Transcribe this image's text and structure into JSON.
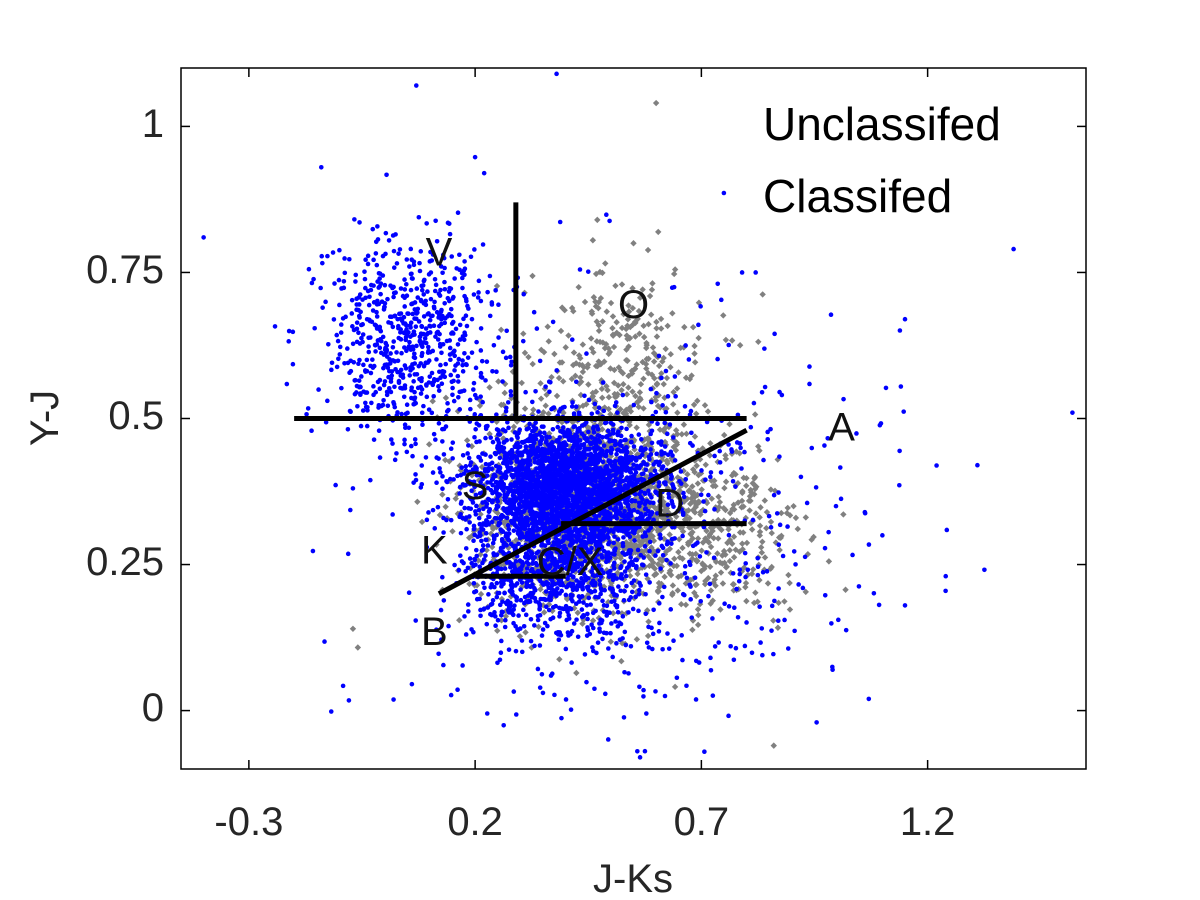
{
  "chart_data": {
    "type": "scatter",
    "title": "",
    "xlabel": "J-Ks",
    "ylabel": "Y-J",
    "xlim": [
      -0.45,
      1.55
    ],
    "ylim": [
      -0.1,
      1.1
    ],
    "x_ticks": [
      -0.3,
      0.2,
      0.7,
      1.2
    ],
    "x_tick_labels": [
      "-0.3",
      "0.2",
      "0.7",
      "1.2"
    ],
    "y_ticks": [
      0,
      0.25,
      0.5,
      0.75,
      1
    ],
    "y_tick_labels": [
      "0",
      "0.25",
      "0.5",
      "0.75",
      "1"
    ],
    "grid": false,
    "legend_placement": "top-right",
    "colors": {
      "unclassified": "#808080",
      "classified": "#0000ff",
      "boundary": "#000000"
    },
    "series": [
      {
        "name": "Unclassifed",
        "marker": "diamond",
        "color": "#808080",
        "clusters": [
          {
            "center": [
              0.45,
              0.36
            ],
            "spread": [
              0.13,
              0.09
            ],
            "count": 1500
          },
          {
            "center": [
              0.52,
              0.6
            ],
            "spread": [
              0.1,
              0.08
            ],
            "count": 250
          },
          {
            "center": [
              0.7,
              0.3
            ],
            "spread": [
              0.12,
              0.08
            ],
            "count": 350
          }
        ],
        "points": [
          [
            0.6,
            1.04
          ],
          [
            0.47,
            0.84
          ],
          [
            0.68,
            0.26
          ],
          [
            0.86,
            -0.06
          ],
          [
            0.41,
            -0.1
          ],
          [
            -0.07,
            0.14
          ],
          [
            0.55,
            0.8
          ]
        ]
      },
      {
        "name": "Classifed",
        "marker": "dot",
        "color": "#0000ff",
        "clusters": [
          {
            "center": [
              0.4,
              0.39
            ],
            "spread": [
              0.1,
              0.05
            ],
            "count": 2400
          },
          {
            "center": [
              0.38,
              0.24
            ],
            "spread": [
              0.1,
              0.06
            ],
            "count": 900
          },
          {
            "center": [
              0.05,
              0.63
            ],
            "spread": [
              0.1,
              0.09
            ],
            "count": 700
          },
          {
            "center": [
              0.55,
              0.3
            ],
            "spread": [
              0.28,
              0.18
            ],
            "count": 500
          }
        ],
        "points": [
          [
            0.07,
            1.07
          ],
          [
            0.38,
            1.09
          ],
          [
            -0.14,
            0.93
          ],
          [
            -0.4,
            0.81
          ],
          [
            1.39,
            0.79
          ],
          [
            1.15,
            0.67
          ],
          [
            1.52,
            0.51
          ],
          [
            1.24,
            0.23
          ],
          [
            1.31,
            0.42
          ],
          [
            0.92,
            0.4
          ],
          [
            1.1,
            0.3
          ],
          [
            1.07,
            0.02
          ],
          [
            0.99,
            0.07
          ],
          [
            1.15,
            0.18
          ],
          [
            0.79,
            0.75
          ],
          [
            0.82,
            0.75
          ],
          [
            0.22,
            0.92
          ]
        ]
      }
    ],
    "boundaries": [
      {
        "from": [
          -0.2,
          0.5
        ],
        "to": [
          0.8,
          0.5
        ]
      },
      {
        "from": [
          0.29,
          0.5
        ],
        "to": [
          0.29,
          0.87
        ]
      },
      {
        "from": [
          0.12,
          0.2
        ],
        "to": [
          0.8,
          0.48
        ]
      },
      {
        "from": [
          0.39,
          0.32
        ],
        "to": [
          0.8,
          0.32
        ]
      },
      {
        "from": [
          0.2,
          0.23
        ],
        "to": [
          0.4,
          0.23
        ]
      }
    ],
    "region_labels": [
      {
        "text": "V",
        "x": 0.12,
        "y": 0.78
      },
      {
        "text": "O",
        "x": 0.55,
        "y": 0.69
      },
      {
        "text": "A",
        "x": 1.01,
        "y": 0.48
      },
      {
        "text": "S",
        "x": 0.2,
        "y": 0.38
      },
      {
        "text": "D",
        "x": 0.63,
        "y": 0.35
      },
      {
        "text": "K",
        "x": 0.11,
        "y": 0.27
      },
      {
        "text": "C/X",
        "x": 0.41,
        "y": 0.25
      },
      {
        "text": "B",
        "x": 0.11,
        "y": 0.13
      }
    ],
    "legend": [
      "Unclassifed",
      "Classifed"
    ]
  }
}
